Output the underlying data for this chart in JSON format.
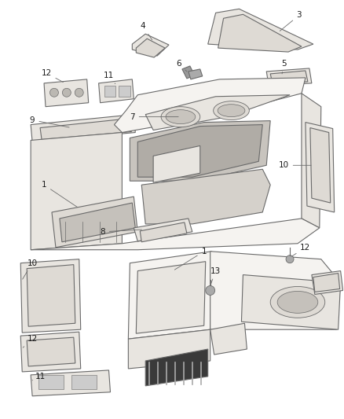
{
  "background_color": "#ffffff",
  "line_color": "#6a6a6a",
  "label_color": "#1a1a1a",
  "fill_main": "#f5f3f0",
  "fill_dark": "#dedad4",
  "fill_mid": "#e8e5e0",
  "fig_width": 4.38,
  "fig_height": 5.33,
  "dpi": 100
}
